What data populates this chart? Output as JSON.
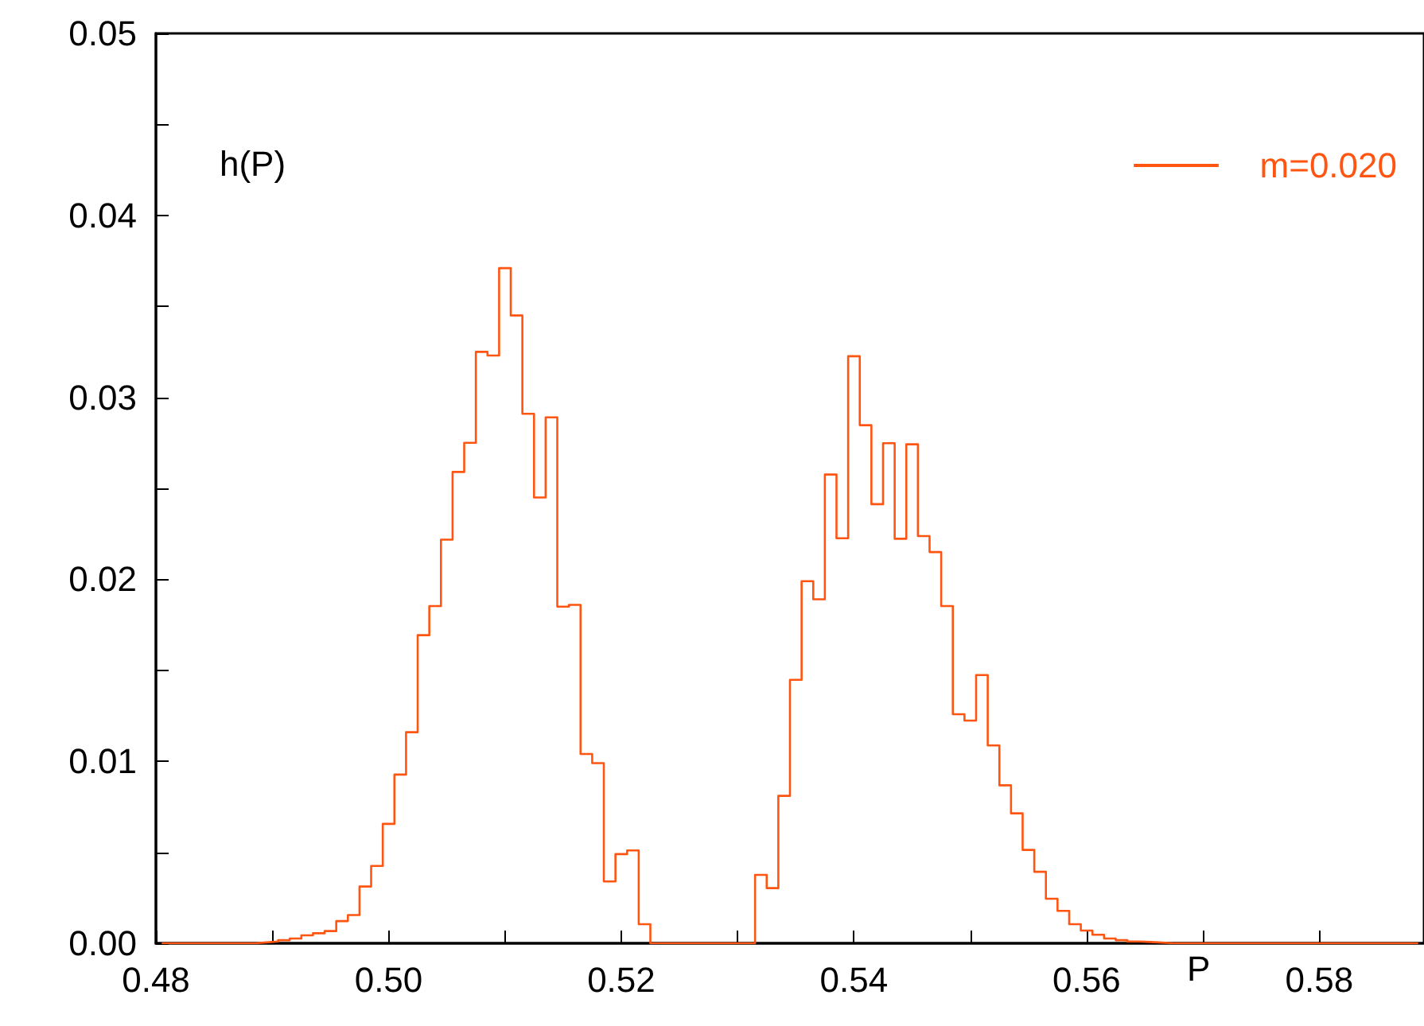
{
  "chart_data": {
    "type": "histogram",
    "xlabel": "P",
    "ylabel": "h(P)",
    "bins": [
      0.4805,
      0.4815,
      0.4825,
      0.4835,
      0.4845,
      0.4855,
      0.4865,
      0.4875,
      0.4885,
      0.4895,
      0.4905,
      0.4915,
      0.4925,
      0.4935,
      0.4945,
      0.4955,
      0.4965,
      0.4975,
      0.4985,
      0.4995,
      0.5005,
      0.5015,
      0.5025,
      0.5035,
      0.5045,
      0.5055,
      0.5065,
      0.5075,
      0.5085,
      0.5095,
      0.5105,
      0.5115,
      0.5125,
      0.5135,
      0.5145,
      0.5155,
      0.5165,
      0.5175,
      0.5185,
      0.5195,
      0.5205,
      0.5215,
      0.5225,
      0.5235,
      0.5245,
      0.5255,
      0.5265,
      0.5275,
      0.5285,
      0.5295,
      0.5305,
      0.5315,
      0.5325,
      0.5335,
      0.5345,
      0.5355,
      0.5365,
      0.5375,
      0.5385,
      0.5395,
      0.5405,
      0.5415,
      0.5425,
      0.5435,
      0.5445,
      0.5455,
      0.5465,
      0.5475,
      0.5485,
      0.5495,
      0.5505,
      0.5515,
      0.5525,
      0.5535,
      0.5545,
      0.5555,
      0.5565,
      0.5575,
      0.5585,
      0.5595,
      0.5605,
      0.5615,
      0.5625,
      0.5635,
      0.5645,
      0.5655,
      0.5665,
      0.5675,
      0.5685,
      0.5695,
      0.5705,
      0.5715,
      0.5725,
      0.5735,
      0.5745,
      0.5755,
      0.5765,
      0.5775,
      0.5785,
      0.5795,
      0.5805,
      0.5815,
      0.5825,
      0.5835,
      0.5845,
      0.5855,
      0.5865,
      0.5875,
      0.5885
    ],
    "series": [
      {
        "name": "m=0.020",
        "color": "#ff5511",
        "values": [
          0,
          0,
          0,
          0,
          0,
          0,
          0,
          0,
          5e-05,
          0.0001,
          0.00017,
          0.00026,
          0.00044,
          0.00055,
          0.00067,
          0.00122,
          0.00155,
          0.00312,
          0.00425,
          0.00656,
          0.00927,
          0.0116,
          0.01693,
          0.01853,
          0.02218,
          0.0259,
          0.0275,
          0.0325,
          0.0323,
          0.0371,
          0.0345,
          0.0291,
          0.0245,
          0.0289,
          0.0185,
          0.0186,
          0.0104,
          0.0099,
          0.0034,
          0.0049,
          0.0051,
          0.00105,
          0,
          0,
          0,
          0,
          0,
          0,
          0,
          0,
          0,
          0.00376,
          0.00303,
          0.0081,
          0.01448,
          0.0199,
          0.0189,
          0.02576,
          0.02226,
          0.03226,
          0.02847,
          0.02413,
          0.02748,
          0.02223,
          0.02742,
          0.02238,
          0.0215,
          0.01853,
          0.01259,
          0.01224,
          0.01474,
          0.01087,
          0.00868,
          0.00714,
          0.00513,
          0.00393,
          0.00245,
          0.00178,
          0.00105,
          0.0007,
          0.00047,
          0.00026,
          0.00017,
          0.0001,
          7e-05,
          4e-05,
          0,
          0,
          0,
          0,
          0,
          0,
          0,
          0,
          0,
          0,
          0,
          0,
          0,
          0,
          0,
          0,
          0,
          0,
          0,
          0,
          0,
          0
        ]
      }
    ],
    "xlim": [
      0.48,
      0.589
    ],
    "xticks": [
      {
        "value": 0.48,
        "label": "0.48"
      },
      {
        "value": 0.49,
        "label": null
      },
      {
        "value": 0.5,
        "label": "0.50"
      },
      {
        "value": 0.51,
        "label": null
      },
      {
        "value": 0.52,
        "label": "0.52"
      },
      {
        "value": 0.53,
        "label": null
      },
      {
        "value": 0.54,
        "label": "0.54"
      },
      {
        "value": 0.55,
        "label": null
      },
      {
        "value": 0.56,
        "label": "0.56"
      },
      {
        "value": 0.57,
        "label": null
      },
      {
        "value": 0.58,
        "label": "0.58"
      }
    ],
    "ylim": [
      0,
      0.05
    ],
    "yticks": [
      {
        "value": 0,
        "label": "0.00"
      },
      {
        "value": 0.005,
        "label": null
      },
      {
        "value": 0.01,
        "label": "0.01"
      },
      {
        "value": 0.015,
        "label": null
      },
      {
        "value": 0.02,
        "label": "0.02"
      },
      {
        "value": 0.025,
        "label": null
      },
      {
        "value": 0.03,
        "label": "0.03"
      },
      {
        "value": 0.035,
        "label": null
      },
      {
        "value": 0.04,
        "label": "0.04"
      },
      {
        "value": 0.045,
        "label": null
      },
      {
        "value": 0.05,
        "label": "0.05"
      }
    ],
    "grid": false,
    "legend": "top right"
  }
}
